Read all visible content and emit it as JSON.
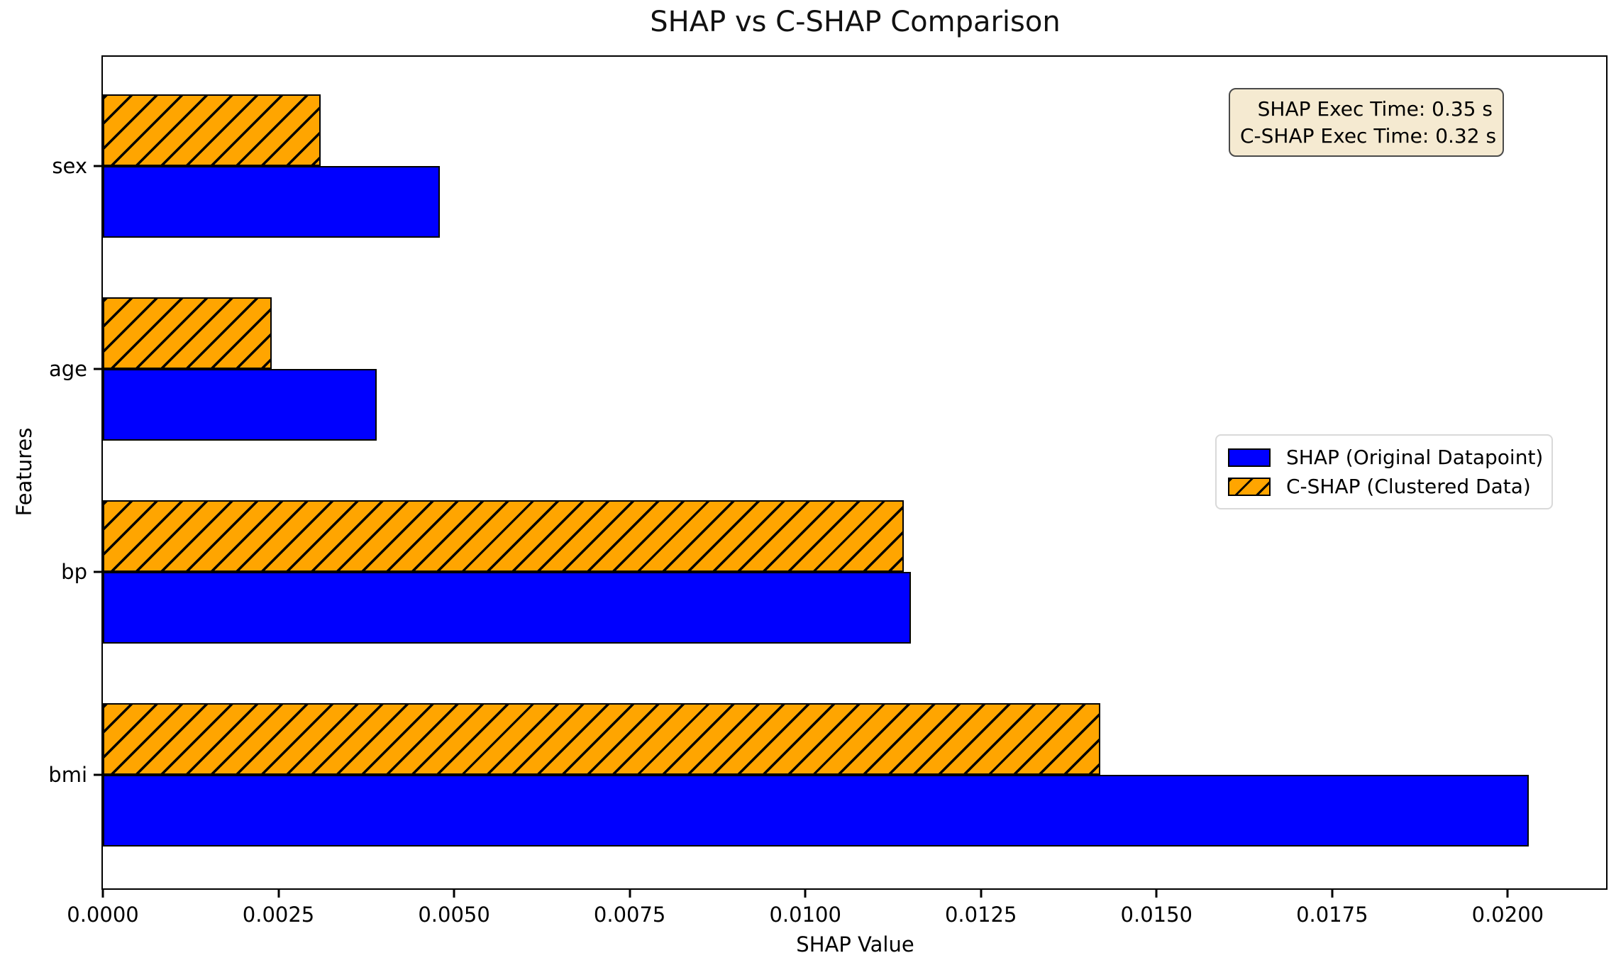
{
  "figure": {
    "title": "SHAP vs C-SHAP Comparison",
    "xlabel": "SHAP Value",
    "ylabel": "Features"
  },
  "annotation": {
    "line1": "SHAP Exec Time: 0.35 s",
    "line2": "C-SHAP Exec Time: 0.32 s"
  },
  "legend": {
    "items": [
      {
        "label": "SHAP (Original Datapoint)"
      },
      {
        "label": "C-SHAP (Clustered Data)"
      }
    ]
  },
  "colors": {
    "shap_blue": "#0000ff",
    "cshap_orange": "#ffa500",
    "bar_edge": "#000000",
    "hatch": "#000000",
    "annotation_bg": "#f5ead1",
    "annotation_border": "#4a4a4a"
  },
  "chart_data": {
    "type": "bar",
    "orientation": "horizontal",
    "title": "SHAP vs C-SHAP Comparison",
    "xlabel": "SHAP Value",
    "ylabel": "Features",
    "categories": [
      "sex",
      "age",
      "bp",
      "bmi"
    ],
    "series": [
      {
        "name": "SHAP (Original Datapoint)",
        "color": "#0000ff",
        "hatch": "",
        "values": [
          0.0048,
          0.0039,
          0.0115,
          0.0203
        ]
      },
      {
        "name": "C-SHAP (Clustered Data)",
        "color": "#ffa500",
        "hatch": "/",
        "values": [
          0.0031,
          0.0024,
          0.0114,
          0.0142
        ]
      }
    ],
    "xlim": [
      0,
      0.0214
    ],
    "x_ticks": [
      0.0,
      0.0025,
      0.005,
      0.0075,
      0.01,
      0.0125,
      0.015,
      0.0175,
      0.02
    ],
    "x_tick_labels": [
      "0.0000",
      "0.0025",
      "0.0050",
      "0.0075",
      "0.0100",
      "0.0125",
      "0.0150",
      "0.0175",
      "0.0200"
    ],
    "grid": false,
    "legend_position": "center right",
    "annotation_lines": [
      "SHAP Exec Time: 0.35 s",
      "C-SHAP Exec Time: 0.32 s"
    ],
    "exec_times_seconds": {
      "shap": 0.35,
      "cshap": 0.32
    }
  }
}
